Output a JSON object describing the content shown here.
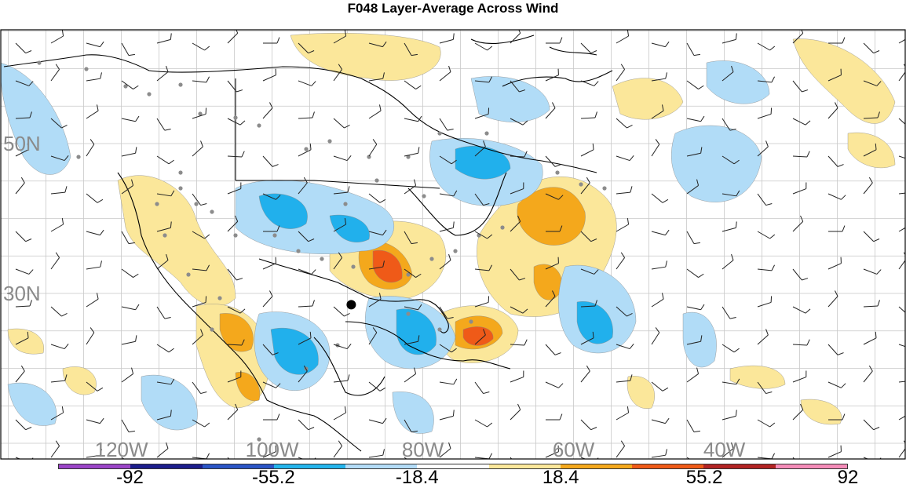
{
  "title": "F048 Layer-Average Across Wind",
  "map": {
    "lat_labels": [
      {
        "value": 50,
        "label": "50N"
      },
      {
        "value": 30,
        "label": "30N"
      }
    ],
    "lon_labels": [
      {
        "value": -120,
        "label": "120W"
      },
      {
        "value": -100,
        "label": "100W"
      },
      {
        "value": -80,
        "label": "80W"
      },
      {
        "value": -60,
        "label": "60W"
      },
      {
        "value": -40,
        "label": "40W"
      }
    ],
    "positive_color_fill": [
      "#fbe79a",
      "#f4a81c",
      "#ef5a18"
    ],
    "negative_color_fill": [
      "#b1dcf7",
      "#21b0ec"
    ],
    "marker": {
      "lat": 28.5,
      "lon": -89.5,
      "color": "#000000"
    }
  },
  "colorbar": {
    "colors": [
      "#9b45c8",
      "#1c1e8c",
      "#2a55c6",
      "#24b4ec",
      "#b3dcf7",
      "#ffffff",
      "#fbe79a",
      "#f4a81c",
      "#ef5a18",
      "#b22424",
      "#f48cb8"
    ],
    "ticks": [
      {
        "value": -92,
        "label": "-92"
      },
      {
        "value": -55.2,
        "label": "-55.2"
      },
      {
        "value": -18.4,
        "label": "-18.4"
      },
      {
        "value": 18.4,
        "label": "18.4"
      },
      {
        "value": 55.2,
        "label": "55.2"
      },
      {
        "value": 92,
        "label": "92"
      }
    ]
  }
}
